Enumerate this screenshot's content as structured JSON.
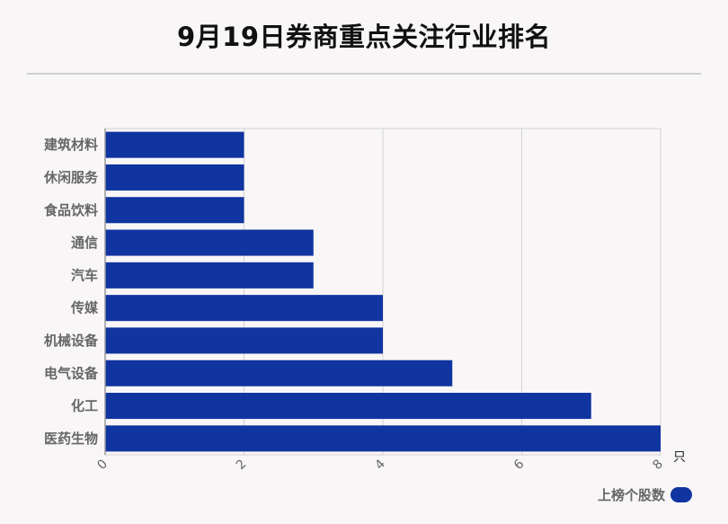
{
  "title": "9月19日券商重点关注行业排名",
  "colors": {
    "bar": "#1034a0",
    "grid": "#d3d3d3",
    "axis": "#999999",
    "label": "#666666"
  },
  "chart_data": {
    "type": "bar",
    "orientation": "horizontal",
    "categories": [
      "建筑材料",
      "休闲服务",
      "食品饮料",
      "通信",
      "汽车",
      "传媒",
      "机械设备",
      "电气设备",
      "化工",
      "医药生物"
    ],
    "series": [
      {
        "name": "上榜个股数",
        "values": [
          2,
          2,
          2,
          3,
          3,
          4,
          4,
          5,
          7,
          8
        ]
      }
    ],
    "xticks": [
      0,
      2,
      4,
      6,
      8
    ],
    "xlim": [
      0,
      8
    ],
    "xunit": "只",
    "grid": true,
    "legend": "bottom-right"
  }
}
